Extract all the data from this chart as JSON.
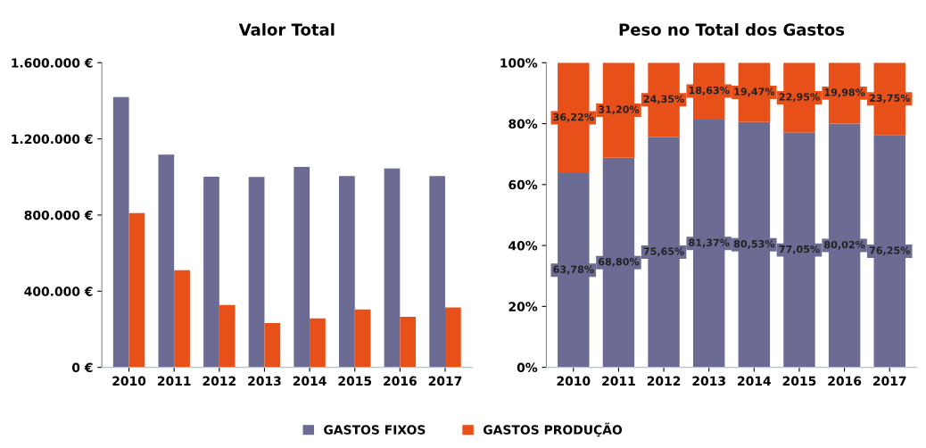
{
  "chart_data": [
    {
      "type": "bar",
      "title": "Valor Total",
      "categories": [
        "2010",
        "2011",
        "2012",
        "2013",
        "2014",
        "2015",
        "2016",
        "2017"
      ],
      "series": [
        {
          "name": "GASTOS FIXOS",
          "color": "#6b6b94",
          "values": [
            1420000,
            1117000,
            1001000,
            1000000,
            1053000,
            1005000,
            1045000,
            1005000
          ]
        },
        {
          "name": "GASTOS PRODUÇÃO",
          "color": "#e8501a",
          "values": [
            810000,
            510000,
            328000,
            233000,
            257000,
            304000,
            265000,
            315000
          ]
        }
      ],
      "ylim": [
        0,
        1600000
      ],
      "yticks": [
        {
          "value": 0,
          "label": "0 €"
        },
        {
          "value": 400000,
          "label": "400.000 €"
        },
        {
          "value": 800000,
          "label": "800.000 €"
        },
        {
          "value": 1200000,
          "label": "1.200.000 €"
        },
        {
          "value": 1600000,
          "label": "1.600.000 €"
        }
      ],
      "grid": false,
      "legend": "bottom"
    },
    {
      "type": "bar",
      "stacked": true,
      "title": "Peso no Total dos Gastos",
      "categories": [
        "2010",
        "2011",
        "2012",
        "2013",
        "2014",
        "2015",
        "2016",
        "2017"
      ],
      "series": [
        {
          "color": "#6b6b94",
          "values": [
            63.78,
            68.8,
            75.65,
            81.37,
            80.53,
            77.05,
            80.02,
            76.25
          ],
          "value_labels": [
            "63,78%",
            "68,80%",
            "75,65%",
            "81,37%",
            "80,53%",
            "77,05%",
            "80,02%",
            "76,25%"
          ]
        },
        {
          "color": "#e8501a",
          "values": [
            36.22,
            31.2,
            24.35,
            18.63,
            19.47,
            22.95,
            19.98,
            23.75
          ],
          "value_labels": [
            "36,22%",
            "31,20%",
            "24,35%",
            "18,63%",
            "19,47%",
            "22,95%",
            "19,98%",
            "23,75%"
          ]
        }
      ],
      "ylim": [
        0,
        100
      ],
      "yticks": [
        {
          "value": 0,
          "label": "0%"
        },
        {
          "value": 20,
          "label": "20%"
        },
        {
          "value": 40,
          "label": "40%"
        },
        {
          "value": 60,
          "label": "60%"
        },
        {
          "value": 80,
          "label": "80%"
        },
        {
          "value": 100,
          "label": "100%"
        }
      ],
      "grid": false
    }
  ]
}
